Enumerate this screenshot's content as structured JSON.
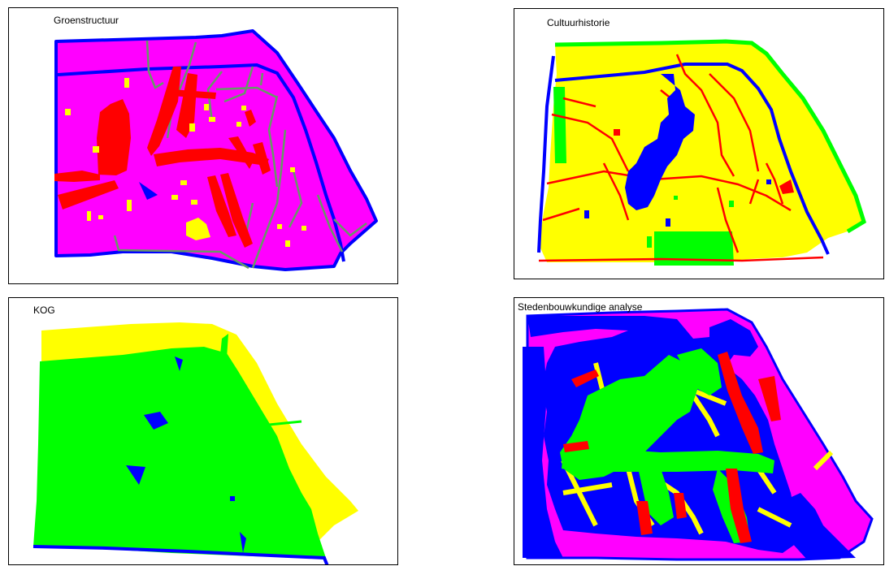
{
  "panels": [
    {
      "title": "Groenstructuur"
    },
    {
      "title": "Cultuurhistorie"
    },
    {
      "title": "KOG"
    },
    {
      "title": "Stedenbouwkundige analyse"
    }
  ],
  "colors": {
    "magenta": "#ff00ff",
    "yellow": "#ffff00",
    "green": "#00ff00",
    "blue": "#0000ff",
    "red": "#ff0000",
    "grey_green": "#669966"
  }
}
